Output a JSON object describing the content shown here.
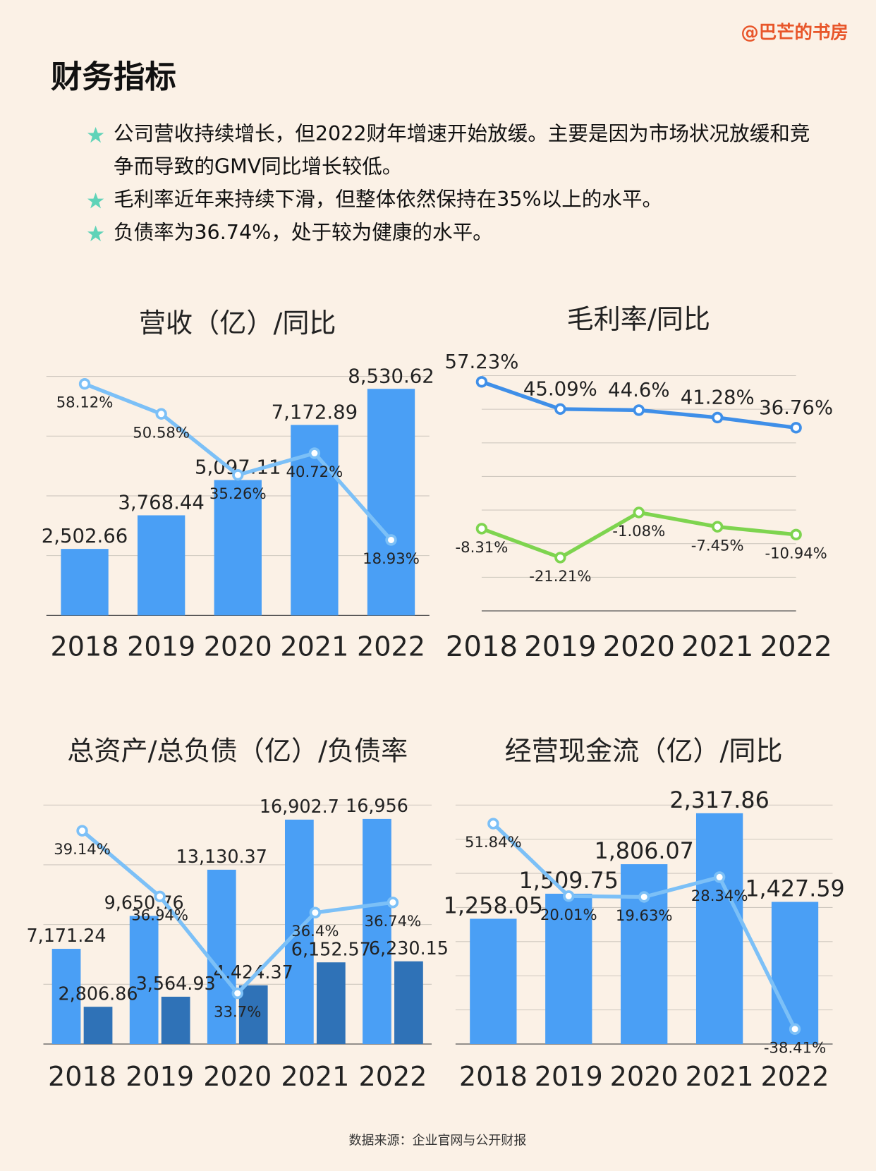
{
  "header": {
    "watermark": "@巴芒的书房",
    "title": "财务指标",
    "bullets": [
      "公司营收持续增长，但2022财年增速开始放缓。主要是因为市场状况放缓和竞争而导致的GMV同比增长较低。",
      "毛利率近年来持续下滑，但整体依然保持在35%以上的水平。",
      "负债率为36.74%，处于较为健康的水平。"
    ]
  },
  "chart_data": [
    {
      "type": "bar",
      "title": "营收（亿）/同比",
      "categories": [
        "2018",
        "2019",
        "2020",
        "2021",
        "2022"
      ],
      "ylim": [
        0,
        9000
      ],
      "y2lim": [
        0,
        60
      ],
      "grid": true,
      "series": [
        {
          "type": "bar",
          "color": "#4a9ff5",
          "values": [
            2502.66,
            3768.44,
            5097.11,
            7172.89,
            8530.62
          ],
          "value_labels": [
            "2,502.66",
            "3,768.44",
            "5,097.11",
            "7,172.89",
            "8,530.62"
          ]
        },
        {
          "type": "line",
          "axis": "y2",
          "color": "#7cc0f7",
          "values": [
            58.12,
            50.58,
            35.26,
            40.72,
            18.93
          ],
          "value_labels": [
            "58.12%",
            "50.58%",
            "35.26%",
            "40.72%",
            "18.93%"
          ]
        }
      ]
    },
    {
      "type": "line",
      "title": "毛利率/同比",
      "categories": [
        "2018",
        "2019",
        "2020",
        "2021",
        "2022"
      ],
      "ylim": [
        -45,
        60
      ],
      "grid": true,
      "series": [
        {
          "type": "line",
          "color": "#3f8fe8",
          "values": [
            57.23,
            45.09,
            44.6,
            41.28,
            36.76
          ],
          "value_labels": [
            "57.23%",
            "45.09%",
            "44.6%",
            "41.28%",
            "36.76%"
          ]
        },
        {
          "type": "line",
          "color": "#7ed44f",
          "values": [
            -8.31,
            -21.21,
            -1.08,
            -7.45,
            -10.94
          ],
          "value_labels": [
            "-8.31%",
            "-21.21%",
            "-1.08%",
            "-7.45%",
            "-10.94%"
          ]
        }
      ]
    },
    {
      "type": "bar",
      "title": "总资产/总负债（亿）/负债率",
      "categories": [
        "2018",
        "2019",
        "2020",
        "2021",
        "2022"
      ],
      "ylim": [
        0,
        18000
      ],
      "y2lim": [
        32,
        40
      ],
      "grid": true,
      "series": [
        {
          "type": "bar",
          "color": "#4a9ff5",
          "values": [
            7171.24,
            9650.76,
            13130.37,
            16902.7,
            16956
          ],
          "value_labels": [
            "7,171.24",
            "9,650.76",
            "13,130.37",
            "16,902.7",
            "16,956"
          ]
        },
        {
          "type": "bar",
          "color": "#2f72b7",
          "values": [
            2806.86,
            3564.93,
            4424.37,
            6152.57,
            6230.15
          ],
          "value_labels": [
            "2,806.86",
            "3,564.93",
            "4,424.37",
            "6,152.57",
            "6,230.15"
          ]
        },
        {
          "type": "line",
          "axis": "y2",
          "color": "#7cc0f7",
          "values": [
            39.14,
            36.94,
            33.7,
            36.4,
            36.74
          ],
          "value_labels": [
            "39.14%",
            "36.94%",
            "33.7%",
            "36.4%",
            "36.74%"
          ]
        }
      ]
    },
    {
      "type": "bar",
      "title": "经营现金流（亿）/同比",
      "categories": [
        "2018",
        "2019",
        "2020",
        "2021",
        "2022"
      ],
      "ylim": [
        0,
        2400
      ],
      "y2lim": [
        -45,
        60
      ],
      "grid": true,
      "series": [
        {
          "type": "bar",
          "color": "#4a9ff5",
          "values": [
            1258.05,
            1509.75,
            1806.07,
            2317.86,
            1427.59
          ],
          "value_labels": [
            "1,258.05",
            "1,509.75",
            "1,806.07",
            "2,317.86",
            "1,427.59"
          ]
        },
        {
          "type": "line",
          "axis": "y2",
          "color": "#7cc0f7",
          "values": [
            51.84,
            20.01,
            19.63,
            28.34,
            -38.41
          ],
          "value_labels": [
            "51.84%",
            "20.01%",
            "19.63%",
            "28.34%",
            "-38.41%"
          ]
        }
      ]
    }
  ],
  "footer": {
    "source": "数据来源：企业官网与公开财报"
  }
}
